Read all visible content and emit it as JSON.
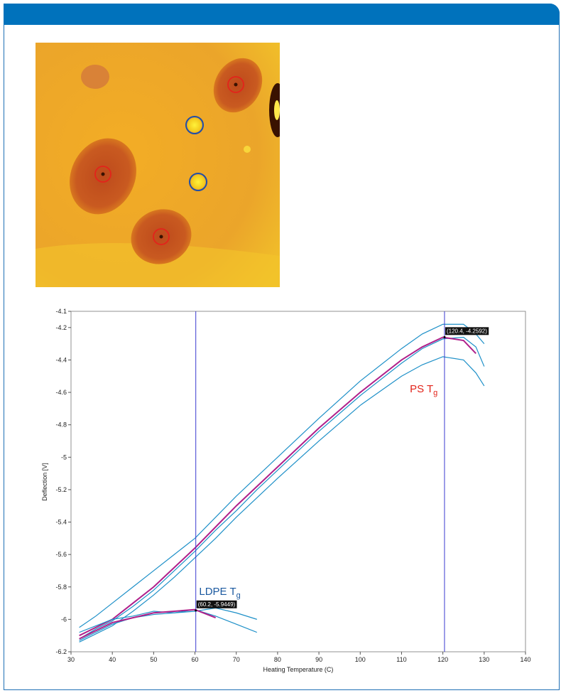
{
  "chart_data": {
    "type": "line",
    "xlabel": "Heating Temperature (C)",
    "ylabel": "Deflection [V]",
    "xlim": [
      30,
      140
    ],
    "xticks": [
      30,
      40,
      50,
      60,
      70,
      80,
      90,
      100,
      110,
      120,
      130,
      140
    ],
    "ylim": [
      -6.2,
      -4.1
    ],
    "yticks": [
      -6.2,
      -6,
      -5.8,
      -5.6,
      -5.4,
      -5.2,
      -5,
      -4.8,
      -4.6,
      -4.4,
      -4.2,
      -4.1
    ],
    "x": [
      32,
      36,
      40,
      45,
      50,
      55,
      60,
      65,
      70,
      75,
      80,
      90,
      100,
      110,
      115,
      120,
      125,
      128,
      130
    ],
    "series": [
      {
        "color": "#1e90c8",
        "values": [
          -6.05,
          -5.98,
          -5.9,
          -5.8,
          -5.7,
          -5.6,
          -5.5,
          -5.37,
          -5.24,
          -5.12,
          -5.0,
          -4.76,
          -4.53,
          -4.33,
          -4.24,
          -4.18,
          -4.18,
          -4.24,
          -4.3
        ]
      },
      {
        "color": "#1e90c8",
        "values": [
          -6.12,
          -6.06,
          -6.01,
          -5.92,
          -5.82,
          -5.7,
          -5.58,
          -5.45,
          -5.33,
          -5.2,
          -5.08,
          -4.84,
          -4.62,
          -4.42,
          -4.33,
          -4.27,
          -4.26,
          -4.32,
          -4.44
        ]
      },
      {
        "color": "#1e90c8",
        "values": [
          -6.14,
          -6.09,
          -6.04,
          -5.95,
          -5.85,
          -5.74,
          -5.62,
          -5.5,
          -5.37,
          -5.25,
          -5.13,
          -4.9,
          -4.68,
          -4.5,
          -4.43,
          -4.38,
          -4.4,
          -4.48,
          -4.56
        ]
      },
      {
        "color": "#b0208a",
        "values": [
          -6.1,
          -6.05,
          -6.0,
          -5.9,
          -5.8,
          -5.68,
          -5.56,
          -5.43,
          -5.3,
          -5.18,
          -5.06,
          -4.82,
          -4.6,
          -4.4,
          -4.32,
          -4.26,
          -4.28,
          -4.36,
          null
        ]
      },
      {
        "color": "#1e90c8",
        "values": [
          -6.08,
          -6.04,
          -6.0,
          -5.98,
          -5.95,
          -5.96,
          -5.94,
          -5.98,
          -6.03,
          -6.08,
          null,
          null,
          null,
          null,
          null,
          null,
          null,
          null,
          null
        ]
      },
      {
        "color": "#1e90c8",
        "values": [
          -6.13,
          -6.08,
          -6.03,
          -5.99,
          -5.97,
          -5.96,
          -5.95,
          -5.93,
          -5.96,
          -6.0,
          null,
          null,
          null,
          null,
          null,
          null,
          null,
          null,
          null
        ]
      },
      {
        "color": "#b0208a",
        "values": [
          -6.12,
          -6.07,
          -6.02,
          -5.99,
          -5.96,
          -5.95,
          -5.94,
          -5.99,
          null,
          null,
          null,
          null,
          null,
          null,
          null,
          null,
          null,
          null,
          null
        ]
      }
    ],
    "markers": [
      {
        "x": 60.2,
        "y": -5.9449,
        "label": "(60.2, -5.9449)"
      },
      {
        "x": 120.4,
        "y": -4.2592,
        "label": "(120.4, -4.2592)"
      }
    ],
    "annotations": [
      {
        "text": "LDPE T",
        "sub": "g",
        "x": 61,
        "y": -5.85,
        "color": "#1c5aa0"
      },
      {
        "text": "PS T",
        "sub": "g",
        "x": 112,
        "y": -4.6,
        "color": "#e2231a"
      }
    ]
  }
}
